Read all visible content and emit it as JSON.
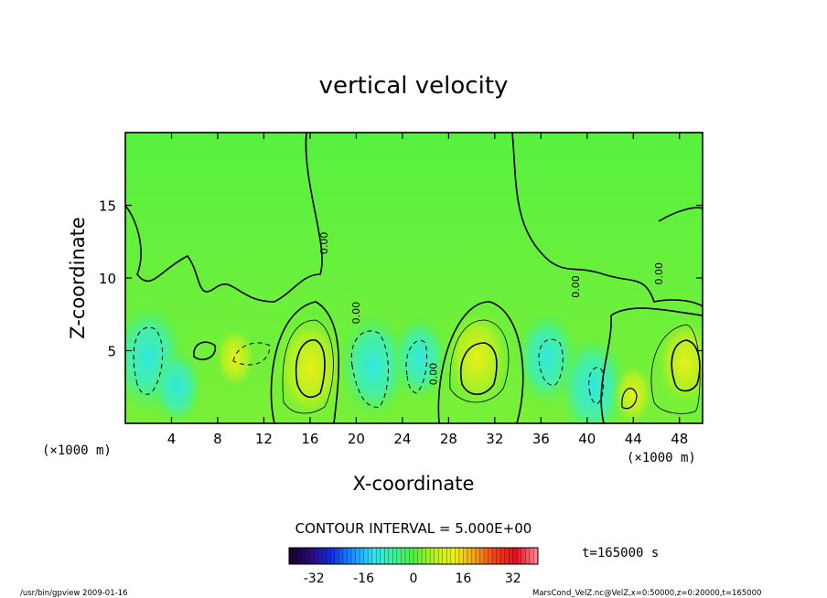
{
  "chart_data": {
    "type": "heatmap",
    "title": "vertical velocity",
    "xlabel": "X-coordinate",
    "ylabel": "Z-coordinate",
    "x_unit_left": "(×1000 m)",
    "x_unit_right": "(×1000 m)",
    "xlim": [
      0,
      50
    ],
    "ylim": [
      0,
      20
    ],
    "x_ticks": [
      4,
      8,
      12,
      16,
      20,
      24,
      28,
      32,
      36,
      40,
      44,
      48
    ],
    "y_ticks": [
      5,
      10,
      15
    ],
    "contour_interval_text": "CONTOUR INTERVAL = 5.000E+00",
    "zero_contour_labels": [
      {
        "x": 17.5,
        "y": 12.4,
        "text": "0.00"
      },
      {
        "x": 27.0,
        "y": 3.4,
        "text": "0.00"
      },
      {
        "x": 46.5,
        "y": 10.3,
        "text": "0.00"
      },
      {
        "x": 39.3,
        "y": 9.4,
        "text": "0.00"
      },
      {
        "x": 20.3,
        "y": 7.6,
        "text": "0.00"
      }
    ],
    "cells": [
      {
        "x": 2.0,
        "y": 4.5,
        "v": -15
      },
      {
        "x": 4.5,
        "y": 2.5,
        "v": -8
      },
      {
        "x": 9.5,
        "y": 4.5,
        "v": 6
      },
      {
        "x": 16.0,
        "y": 3.8,
        "v": 16
      },
      {
        "x": 21.5,
        "y": 4.0,
        "v": -14
      },
      {
        "x": 25.5,
        "y": 4.5,
        "v": -10
      },
      {
        "x": 30.5,
        "y": 4.5,
        "v": 14
      },
      {
        "x": 36.5,
        "y": 4.5,
        "v": -12
      },
      {
        "x": 40.5,
        "y": 2.5,
        "v": -14
      },
      {
        "x": 44.0,
        "y": 2.0,
        "v": 6
      },
      {
        "x": 48.5,
        "y": 4.2,
        "v": 12
      }
    ],
    "colorbar": {
      "range": [
        -40,
        40
      ],
      "ticks": [
        -32,
        -16,
        0,
        16,
        32
      ],
      "colors": [
        "#1a0030",
        "#2a0a80",
        "#1030e0",
        "#1890ff",
        "#30e0f0",
        "#40f0a0",
        "#50f040",
        "#b8f020",
        "#f0f018",
        "#f0a018",
        "#f04018",
        "#e01020",
        "#ff8090"
      ]
    },
    "annotations": {
      "time": "t=165000 s"
    }
  },
  "footer": {
    "left": "/usr/bin/gpview  2009-01-16",
    "right": "MarsCond_VelZ.nc@VelZ,x=0:50000,z=0:20000,t=165000"
  }
}
